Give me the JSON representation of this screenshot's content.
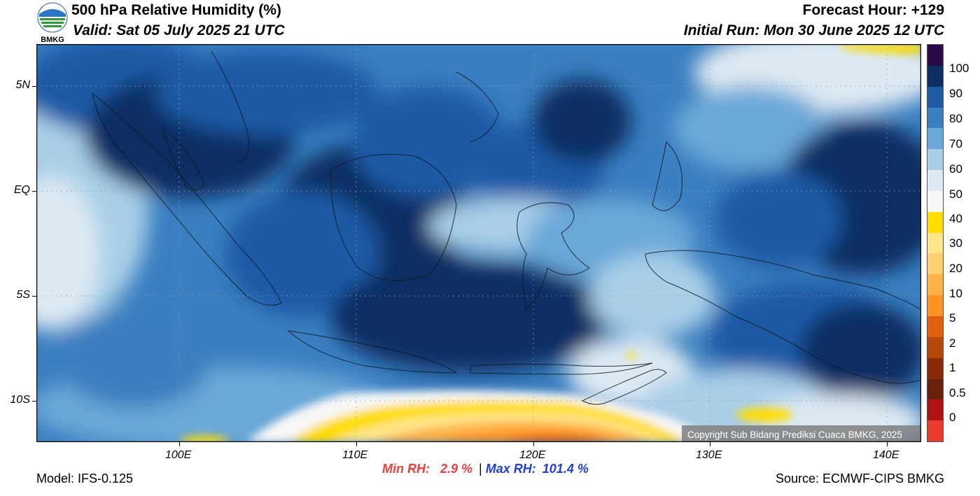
{
  "header": {
    "title": "500 hPa Relative Humidity (%)",
    "valid": "Valid: Sat 05 July 2025 21 UTC",
    "forecast_hour": "Forecast Hour: +129",
    "initial_run": "Initial Run: Mon 30 June 2025 12 UTC",
    "logo_text": "BMKG"
  },
  "map": {
    "lat_labels": [
      "5N",
      "EQ",
      "5S",
      "10S"
    ],
    "lon_labels": [
      "100E",
      "110E",
      "120E",
      "130E",
      "140E"
    ],
    "copyright": "Copyright Sub Bidang Prediksi Cuaca BMKG, 2025"
  },
  "colorbar": {
    "labels": [
      "100",
      "90",
      "80",
      "70",
      "60",
      "50",
      "40",
      "30",
      "20",
      "10",
      "5",
      "2",
      "1",
      "0.5",
      "0"
    ],
    "colors": [
      "#2b0a4a",
      "#0d2f63",
      "#1f5aa6",
      "#3a7fc0",
      "#6aa8d8",
      "#a9cfe8",
      "#dde9f3",
      "#f7f7f7",
      "#ffdd00",
      "#ffe58a",
      "#ffd070",
      "#ffb347",
      "#ff9426",
      "#e06010",
      "#b8470c",
      "#8a2a08",
      "#6a1f0a",
      "#b01313",
      "#e83b2e"
    ]
  },
  "footer": {
    "model": "Model: IFS-0.125",
    "min_rh_label": "Min RH:",
    "min_rh_value": "2.9 %",
    "separator": "|",
    "max_rh_label": "Max RH:",
    "max_rh_value": "101.4 %",
    "source": "Source: ECMWF-CIPS BMKG"
  },
  "colors": {
    "min_rh": "#e8403c",
    "max_rh": "#1f3fd8"
  }
}
